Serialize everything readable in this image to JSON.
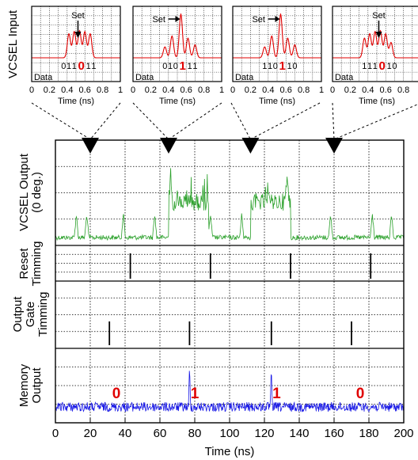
{
  "chart_data": {
    "type": "line",
    "colors": {
      "vcsel": "#2aa02a",
      "memory": "#1a1ae6",
      "input": "#e00000",
      "bit_digit": "#e00000"
    },
    "main": {
      "xlabel": "Time (ns)",
      "xlim": [
        0,
        200
      ],
      "x_tick_labels": [
        "0",
        "20",
        "40",
        "60",
        "80",
        "100",
        "120",
        "140",
        "160",
        "180",
        "200"
      ],
      "set_markers_ns": [
        20,
        65,
        112,
        160
      ],
      "panels": [
        {
          "key": "vcsel",
          "ylabel_lines": [
            "VCSEL Output",
            "(0 deg.)"
          ],
          "description": "baseline with short spikes; elevated level during bit 1 intervals",
          "high_intervals_ns": [
            [
              65,
              88
            ],
            [
              112,
              135
            ]
          ],
          "spike_times_ns": [
            12,
            18,
            39,
            57,
            66,
            89,
            107,
            133,
            158,
            182,
            193
          ]
        },
        {
          "key": "reset",
          "ylabel_lines": [
            "Reset",
            "Timming"
          ],
          "pulse_times_ns": [
            43,
            89,
            135,
            181
          ]
        },
        {
          "key": "output_gate",
          "ylabel_lines": [
            "Output",
            "Gate",
            "Timming"
          ],
          "pulse_times_ns": [
            31,
            77,
            124,
            170
          ]
        },
        {
          "key": "memory",
          "ylabel_lines": [
            "Memory",
            "Output"
          ],
          "spike_times_ns": [
            77,
            124
          ],
          "bit_labels": [
            {
              "x": 35,
              "text": "0"
            },
            {
              "x": 80,
              "text": "1"
            },
            {
              "x": 127,
              "text": "1"
            },
            {
              "x": 175,
              "text": "0"
            }
          ]
        }
      ]
    },
    "inputs": {
      "ylabel": "VCSEL Input",
      "xlabel": "Time (ns)",
      "xlim": [
        0,
        1
      ],
      "x_tick_labels": [
        "0",
        "0.2",
        "0.4",
        "0.6",
        "0.8",
        "1"
      ],
      "set_label": "Set",
      "data_label": "Data",
      "insets": [
        {
          "pulses": [
            0.42,
            0.48,
            0.54,
            0.6,
            0.66
          ],
          "amps": [
            0.55,
            0.6,
            0.62,
            0.6,
            0.55
          ],
          "set_x": 0.54,
          "set_arrow": "down",
          "bits": [
            {
              "t": "0",
              "big": false,
              "x": 0.36
            },
            {
              "t": "1",
              "big": false,
              "x": 0.42
            },
            {
              "t": "1",
              "big": false,
              "x": 0.48
            },
            {
              "t": "0",
              "big": true,
              "x": 0.56
            },
            {
              "t": "1",
              "big": false,
              "x": 0.64
            },
            {
              "t": "1",
              "big": false,
              "x": 0.7
            }
          ]
        },
        {
          "pulses": [
            0.36,
            0.44,
            0.54,
            0.62,
            0.7
          ],
          "amps": [
            0.25,
            0.5,
            1.0,
            0.45,
            0.3
          ],
          "set_x": 0.54,
          "set_arrow": "right",
          "bits": [
            {
              "t": "0",
              "big": false,
              "x": 0.36
            },
            {
              "t": "1",
              "big": false,
              "x": 0.42
            },
            {
              "t": "0",
              "big": false,
              "x": 0.48
            },
            {
              "t": "1",
              "big": true,
              "x": 0.56
            },
            {
              "t": "1",
              "big": false,
              "x": 0.64
            },
            {
              "t": "1",
              "big": false,
              "x": 0.7
            }
          ]
        },
        {
          "pulses": [
            0.36,
            0.44,
            0.54,
            0.62,
            0.7
          ],
          "amps": [
            0.25,
            0.5,
            1.0,
            0.45,
            0.3
          ],
          "set_x": 0.54,
          "set_arrow": "right",
          "bits": [
            {
              "t": "1",
              "big": false,
              "x": 0.36
            },
            {
              "t": "1",
              "big": false,
              "x": 0.42
            },
            {
              "t": "0",
              "big": false,
              "x": 0.48
            },
            {
              "t": "1",
              "big": true,
              "x": 0.56
            },
            {
              "t": "1",
              "big": false,
              "x": 0.64
            },
            {
              "t": "0",
              "big": false,
              "x": 0.7
            }
          ]
        },
        {
          "pulses": [
            0.36,
            0.42,
            0.48,
            0.54,
            0.6,
            0.66
          ],
          "amps": [
            0.45,
            0.55,
            0.6,
            0.62,
            0.55,
            0.35
          ],
          "set_x": 0.54,
          "set_arrow": "down",
          "bits": [
            {
              "t": "1",
              "big": false,
              "x": 0.36
            },
            {
              "t": "1",
              "big": false,
              "x": 0.42
            },
            {
              "t": "1",
              "big": false,
              "x": 0.48
            },
            {
              "t": "0",
              "big": true,
              "x": 0.56
            },
            {
              "t": "1",
              "big": false,
              "x": 0.64
            },
            {
              "t": "0",
              "big": false,
              "x": 0.7
            }
          ]
        }
      ]
    }
  }
}
